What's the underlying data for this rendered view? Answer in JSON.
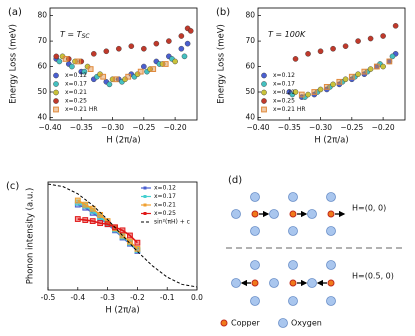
{
  "chart_data": [
    {
      "type": "scatter",
      "panel_label": "(a)",
      "annotation": "T = T",
      "annotation_sub": "SC",
      "xlabel": "H (2π/a)",
      "ylabel": "Energy Loss (meV)",
      "xlim": [
        -0.4,
        -0.165
      ],
      "ylim": [
        39,
        83
      ],
      "xticks": [
        {
          "value": -0.4,
          "label": "−0.40"
        },
        {
          "value": -0.35,
          "label": "−0.35"
        },
        {
          "value": -0.3,
          "label": "−0.30"
        },
        {
          "value": -0.25,
          "label": "−0.25"
        },
        {
          "value": -0.2,
          "label": "−0.20"
        }
      ],
      "yticks": [
        40,
        50,
        60,
        70,
        80
      ],
      "legend": "lower left",
      "series": [
        {
          "name": "x=0.12",
          "color": "#4a5fd0",
          "marker": "circle",
          "x": [
            -0.39,
            -0.37,
            -0.35,
            -0.33,
            -0.31,
            -0.29,
            -0.27,
            -0.25,
            -0.23,
            -0.21,
            -0.19,
            -0.18
          ],
          "values": [
            63,
            61,
            58,
            55,
            54,
            55,
            57,
            60,
            62,
            64,
            67,
            69
          ]
        },
        {
          "name": "x=0.17",
          "color": "#45c0c0",
          "marker": "circle",
          "x": [
            -0.385,
            -0.365,
            -0.345,
            -0.325,
            -0.305,
            -0.285,
            -0.265,
            -0.245,
            -0.225,
            -0.205,
            -0.185
          ],
          "values": [
            62,
            60,
            58,
            56,
            53,
            54,
            56,
            58,
            61,
            63,
            64
          ]
        },
        {
          "name": "x=0.21",
          "color": "#c9c23a",
          "marker": "circle",
          "x": [
            -0.38,
            -0.36,
            -0.34,
            -0.32,
            -0.3,
            -0.28,
            -0.26,
            -0.24,
            -0.22,
            -0.2
          ],
          "values": [
            64,
            62,
            60,
            57,
            55,
            55,
            57,
            59,
            61,
            62
          ]
        },
        {
          "name": "x=0.25",
          "color": "#c0392b",
          "marker": "circle",
          "x": [
            -0.39,
            -0.37,
            -0.35,
            -0.33,
            -0.31,
            -0.29,
            -0.27,
            -0.25,
            -0.23,
            -0.21,
            -0.19,
            -0.18,
            -0.175
          ],
          "values": [
            64,
            63,
            62,
            65,
            66,
            67,
            68,
            67,
            69,
            70,
            72,
            75,
            74
          ]
        },
        {
          "name": "x=0.21 HR",
          "color": "#e08a3c",
          "marker": "square",
          "x": [
            -0.375,
            -0.355,
            -0.335,
            -0.315,
            -0.295,
            -0.275,
            -0.255,
            -0.235,
            -0.215
          ],
          "values": [
            63,
            62,
            59,
            56,
            55,
            56,
            58,
            59,
            61
          ]
        }
      ]
    },
    {
      "type": "scatter",
      "panel_label": "(b)",
      "annotation": "T = 100K",
      "xlabel": "H (2π/a)",
      "ylabel": "Energy Loss (meV)",
      "xlim": [
        -0.4,
        -0.165
      ],
      "ylim": [
        39,
        83
      ],
      "xticks": [
        {
          "value": -0.4,
          "label": "−0.40"
        },
        {
          "value": -0.35,
          "label": "−0.35"
        },
        {
          "value": -0.3,
          "label": "−0.30"
        },
        {
          "value": -0.25,
          "label": "−0.25"
        },
        {
          "value": -0.2,
          "label": "−0.20"
        }
      ],
      "yticks": [
        40,
        50,
        60,
        70,
        80
      ],
      "legend": "lower left",
      "series": [
        {
          "name": "x=0.12",
          "color": "#4a5fd0",
          "marker": "circle",
          "x": [
            -0.35,
            -0.33,
            -0.31,
            -0.29,
            -0.27,
            -0.25,
            -0.23,
            -0.21,
            -0.19,
            -0.18
          ],
          "values": [
            50,
            48,
            49,
            51,
            53,
            55,
            57,
            60,
            62,
            65
          ]
        },
        {
          "name": "x=0.17",
          "color": "#45c0c0",
          "marker": "circle",
          "x": [
            -0.345,
            -0.325,
            -0.305,
            -0.285,
            -0.265,
            -0.245,
            -0.225,
            -0.205,
            -0.185
          ],
          "values": [
            49,
            48,
            50,
            52,
            54,
            56,
            58,
            61,
            64
          ]
        },
        {
          "name": "x=0.21",
          "color": "#c9c23a",
          "marker": "circle",
          "x": [
            -0.34,
            -0.32,
            -0.3,
            -0.28,
            -0.26,
            -0.24,
            -0.22,
            -0.2
          ],
          "values": [
            50,
            49,
            51,
            53,
            55,
            57,
            59,
            60
          ]
        },
        {
          "name": "x=0.25",
          "color": "#c0392b",
          "marker": "circle",
          "x": [
            -0.34,
            -0.32,
            -0.3,
            -0.28,
            -0.26,
            -0.24,
            -0.22,
            -0.2,
            -0.18
          ],
          "values": [
            63,
            65,
            66,
            67,
            68,
            70,
            71,
            72,
            76
          ]
        },
        {
          "name": "x=0.21 HR",
          "color": "#e08a3c",
          "marker": "square",
          "x": [
            -0.33,
            -0.31,
            -0.29,
            -0.27,
            -0.25,
            -0.23,
            -0.21,
            -0.19
          ],
          "values": [
            49,
            50,
            52,
            54,
            56,
            58,
            60,
            62
          ]
        }
      ]
    },
    {
      "type": "line",
      "panel_label": "(c)",
      "xlabel": "H (2π/a)",
      "ylabel": "Phonon intensity (a.u.)",
      "xlim": [
        -0.5,
        0.0
      ],
      "ylim": [
        -0.03,
        1.02
      ],
      "xticks": [
        -0.5,
        -0.4,
        -0.3,
        -0.2,
        -0.1,
        {
          "value": 0.0,
          "label": "0.0"
        }
      ],
      "legend": "upper right",
      "series": [
        {
          "name": "x=0.12",
          "color": "#4a5fd0",
          "marker": "square",
          "x": [
            -0.4,
            -0.375,
            -0.35,
            -0.325,
            -0.3,
            -0.275,
            -0.25,
            -0.225,
            -0.2
          ],
          "values": [
            0.8,
            0.77,
            0.72,
            0.67,
            0.61,
            0.55,
            0.48,
            0.42,
            0.35
          ]
        },
        {
          "name": "x=0.17",
          "color": "#45d0d0",
          "marker": "square",
          "x": [
            -0.4,
            -0.375,
            -0.35,
            -0.325,
            -0.3,
            -0.275,
            -0.25,
            -0.225,
            -0.2
          ],
          "values": [
            0.82,
            0.79,
            0.74,
            0.68,
            0.62,
            0.56,
            0.49,
            0.43,
            0.36
          ]
        },
        {
          "name": "x=0.21",
          "color": "#f0a030",
          "marker": "square",
          "x": [
            -0.4,
            -0.375,
            -0.35,
            -0.325,
            -0.3,
            -0.275,
            -0.25,
            -0.225,
            -0.2
          ],
          "values": [
            0.84,
            0.8,
            0.76,
            0.7,
            0.64,
            0.57,
            0.5,
            0.44,
            0.37
          ]
        },
        {
          "name": "x=0.25",
          "color": "#e01818",
          "marker": "square",
          "x": [
            -0.4,
            -0.375,
            -0.35,
            -0.325,
            -0.3,
            -0.275,
            -0.25,
            -0.225,
            -0.2
          ],
          "values": [
            0.66,
            0.65,
            0.64,
            0.62,
            0.61,
            0.58,
            0.55,
            0.5,
            0.43
          ]
        },
        {
          "name": "sin²(πH) + c",
          "color": "#000000",
          "marker": "none",
          "linestyle": "dashed",
          "x": [
            -0.5,
            -0.45,
            -0.4,
            -0.35,
            -0.3,
            -0.25,
            -0.2,
            -0.15,
            -0.1,
            -0.05,
            0.0
          ],
          "values": [
            1.0,
            0.976,
            0.905,
            0.794,
            0.655,
            0.5,
            0.345,
            0.206,
            0.095,
            0.024,
            0.0
          ]
        }
      ]
    }
  ],
  "diagram": {
    "panel_label": "(d)",
    "labels": [
      "H=(0, 0)",
      "H=(0.5, 0)"
    ],
    "legend": [
      "Copper",
      "Oxygen"
    ]
  }
}
